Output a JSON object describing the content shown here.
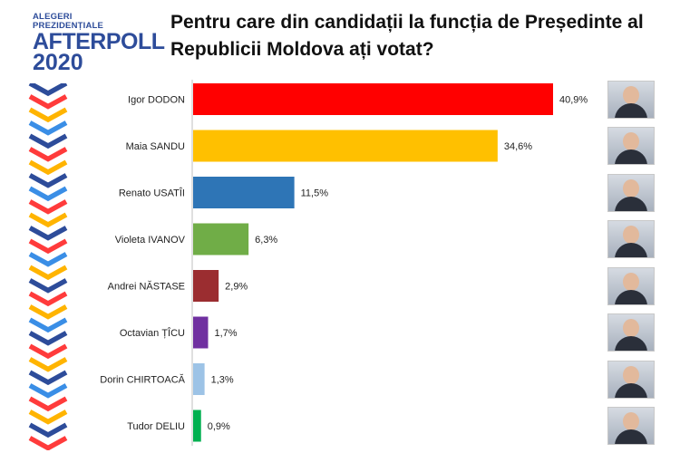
{
  "logo": {
    "line1": "ALEGERI",
    "line2": "PREZIDENȚIALE",
    "line3": "AFTERPOLL",
    "line4": "2020"
  },
  "title": "Pentru care din candidații la funcția de Președinte al Republicii Moldova ați votat?",
  "chart_data": {
    "type": "bar",
    "orientation": "horizontal",
    "title": "Pentru care din candidații la funcția de Președinte al Republicii Moldova ați votat?",
    "categories": [
      "Igor DODON",
      "Maia SANDU",
      "Renato USATÎI",
      "Violeta IVANOV",
      "Andrei NĂSTASE",
      "Octavian ȚÎCU",
      "Dorin CHIRTOACĂ",
      "Tudor DELIU"
    ],
    "values": [
      40.9,
      34.6,
      11.5,
      6.3,
      2.9,
      1.7,
      1.3,
      0.9
    ],
    "value_labels": [
      "40,9%",
      "34,6%",
      "11,5%",
      "6,3%",
      "2,9%",
      "1,7%",
      "1,3%",
      "0,9%"
    ],
    "colors": [
      "#ff0000",
      "#ffc000",
      "#2e75b6",
      "#70ad47",
      "#9b2d30",
      "#7030a0",
      "#9dc3e6",
      "#00b050"
    ],
    "xlim": [
      0,
      45
    ],
    "grid": false,
    "legend": "none"
  },
  "photos": [
    "candidate-photo-dodon",
    "candidate-photo-sandu",
    "candidate-photo-usatii",
    "candidate-photo-ivanov",
    "candidate-photo-nastase",
    "candidate-photo-ticu",
    "candidate-photo-chirtoaca",
    "candidate-photo-deliu"
  ]
}
